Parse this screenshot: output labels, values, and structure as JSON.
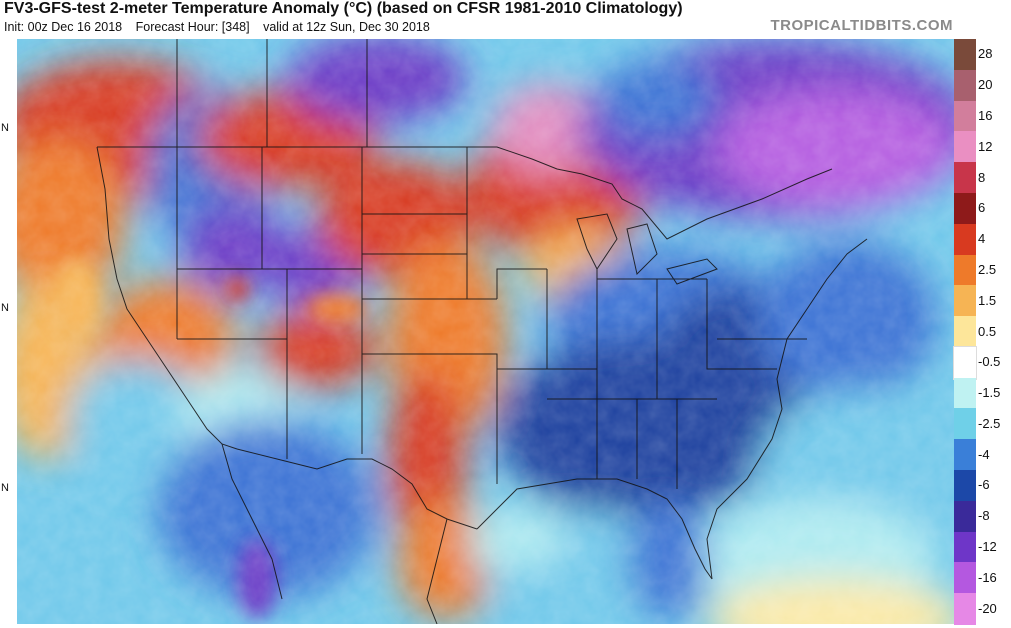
{
  "header": {
    "title": "FV3-GFS-test 2-meter Temperature Anomaly (°C) (based on CFSR 1981-2010 Climatology)",
    "init": "Init: 00z Dec 16 2018",
    "forecast_hour": "Forecast Hour: [348]",
    "valid": "valid at 12z Sun, Dec 30 2018",
    "site": "TROPICALTIDBITS.COM"
  },
  "lat_labels": [
    "N",
    "N",
    "N"
  ],
  "colorbar": {
    "labels": [
      "28",
      "20",
      "16",
      "12",
      "8",
      "6",
      "4",
      "2.5",
      "1.5",
      "0.5",
      "-0.5",
      "-1.5",
      "-2.5",
      "-4",
      "-6",
      "-8",
      "-12",
      "-16",
      "-20"
    ],
    "colors": [
      "#7a4a3a",
      "#a8606e",
      "#d27e9c",
      "#ea8fc2",
      "#c8354a",
      "#8e1a1a",
      "#d83a20",
      "#ee7a2a",
      "#f6b454",
      "#fde69a",
      "#ffffff",
      "#bff2f2",
      "#6fd0e8",
      "#3a7fd8",
      "#1c48a8",
      "#3a2a9a",
      "#6e36c8",
      "#b458e0",
      "#e688e6"
    ]
  },
  "map": {
    "palette": {
      "deep_blue": "#1c3f9e",
      "blue": "#3a72d4",
      "light_blue": "#6fc8ea",
      "cyan": "#aeeaf0",
      "violet": "#6a3ac6",
      "magenta": "#b45be0",
      "red": "#d83a20",
      "orange": "#ee7a2a",
      "tan": "#f6b454",
      "pink": "#e28cc0",
      "pale_yellow": "#fbe9a6"
    }
  }
}
